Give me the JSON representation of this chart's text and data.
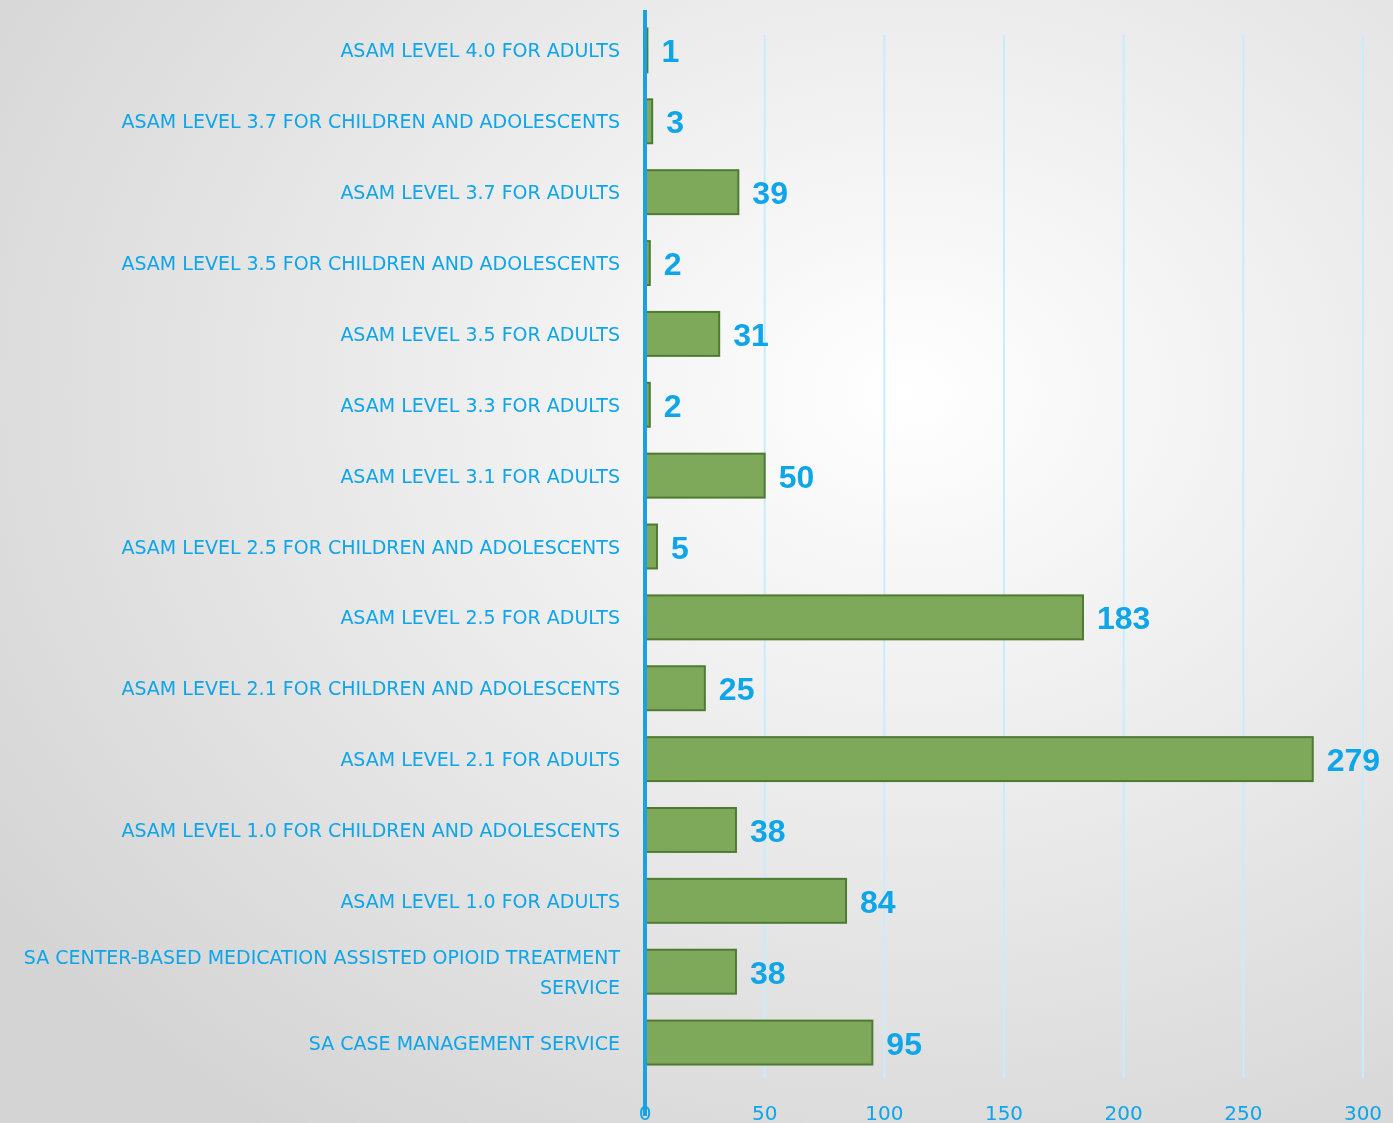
{
  "chart_data": {
    "type": "bar",
    "orientation": "horizontal",
    "categories": [
      "ASAM LEVEL 4.0 FOR ADULTS",
      "ASAM LEVEL 3.7 FOR CHILDREN AND ADOLESCENTS",
      "ASAM LEVEL 3.7 FOR ADULTS",
      "ASAM LEVEL 3.5 FOR CHILDREN AND ADOLESCENTS",
      "ASAM LEVEL 3.5 FOR ADULTS",
      "ASAM LEVEL 3.3 FOR ADULTS",
      "ASAM LEVEL 3.1 FOR ADULTS",
      "ASAM LEVEL 2.5 FOR CHILDREN AND ADOLESCENTS",
      "ASAM LEVEL 2.5 FOR ADULTS",
      "ASAM LEVEL 2.1 FOR CHILDREN AND ADOLESCENTS",
      "ASAM LEVEL 2.1 FOR ADULTS",
      "ASAM LEVEL 1.0 FOR CHILDREN AND ADOLESCENTS",
      "ASAM LEVEL 1.0 FOR ADULTS",
      "SA CENTER-BASED MEDICATION ASSISTED OPIOID TREATMENT SERVICE",
      "SA CASE MANAGEMENT SERVICE"
    ],
    "values": [
      1,
      3,
      39,
      2,
      31,
      2,
      50,
      5,
      183,
      25,
      279,
      38,
      84,
      38,
      95
    ],
    "color": "#7fa95a",
    "xlim": [
      0,
      300
    ],
    "xticks": [
      0,
      50,
      100,
      150,
      200,
      250,
      300
    ],
    "grid": "x",
    "data_labels": true
  }
}
